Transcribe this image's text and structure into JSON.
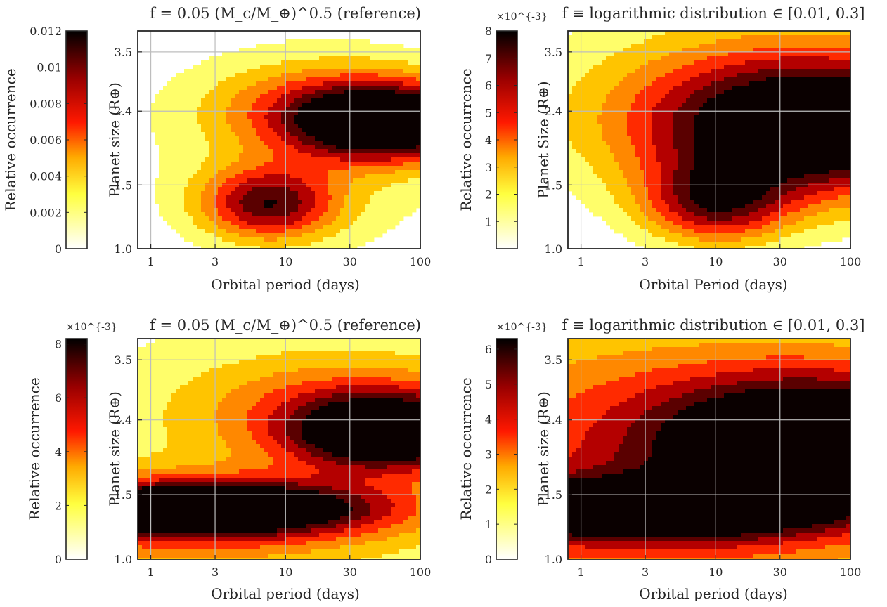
{
  "chart_data": [
    {
      "type": "heatmap",
      "panel": "top-left",
      "title": "f = 0.05 (M_c/M_⊕)^0.5 (reference)",
      "xlabel": "Orbital period (days)",
      "ylabel": "Planet size (R⊕)",
      "x_scale": "log",
      "y_scale": "log",
      "xlim": [
        0.8,
        100
      ],
      "ylim": [
        1.0,
        4.0
      ],
      "xticks": [
        1,
        3,
        10,
        30,
        100
      ],
      "xtick_labels": [
        "1",
        "3",
        "10",
        "30",
        "100"
      ],
      "yticks": [
        1.0,
        1.5,
        2.4,
        3.5
      ],
      "ytick_labels": [
        "1.0",
        "1.5",
        "2.4",
        "3.5"
      ],
      "grid": true,
      "colorbar": {
        "label": "Relative occurrence",
        "range": [
          0,
          0.012
        ],
        "ticks": [
          0,
          0.002,
          0.004,
          0.006,
          0.008,
          0.01,
          0.012
        ],
        "tick_labels": [
          "0",
          "0.002",
          "0.004",
          "0.006",
          "0.008",
          "0.01",
          "0.012"
        ],
        "exponent_label": ""
      },
      "contour_levels": [
        0.0015,
        0.003,
        0.0045,
        0.006,
        0.0075,
        0.009,
        0.0105
      ],
      "features": [
        {
          "x": 60,
          "y": 2.2,
          "peak": 0.0115,
          "sx": 0.5,
          "sy": 0.07
        },
        {
          "x": 28,
          "y": 2.5,
          "peak": 0.005,
          "sx": 0.65,
          "sy": 0.08
        },
        {
          "x": 7.5,
          "y": 1.33,
          "peak": 0.0085,
          "sx": 0.35,
          "sy": 0.07
        },
        {
          "x": 15,
          "y": 1.9,
          "peak": 0.0028,
          "sx": 0.9,
          "sy": 0.22
        }
      ]
    },
    {
      "type": "heatmap",
      "panel": "top-right",
      "title": "f ≡ logarithmic distribution ∈ [0.01, 0.3]",
      "xlabel": "Orbital Period (days)",
      "ylabel": "Planet Size (R⊕)",
      "x_scale": "log",
      "y_scale": "log",
      "xlim": [
        0.8,
        100
      ],
      "ylim": [
        1.0,
        4.0
      ],
      "xticks": [
        1,
        3,
        10,
        30,
        100
      ],
      "xtick_labels": [
        "1",
        "3",
        "10",
        "30",
        "100"
      ],
      "yticks": [
        1.0,
        1.5,
        2.4,
        3.5
      ],
      "ytick_labels": [
        "1.0",
        "1.5",
        "2.4",
        "3.5"
      ],
      "grid": true,
      "colorbar": {
        "label": "Relative occurrence",
        "range": [
          0,
          0.008
        ],
        "ticks": [
          0,
          0.001,
          0.002,
          0.003,
          0.004,
          0.005,
          0.006,
          0.007,
          0.008
        ],
        "tick_labels": [
          "",
          "1",
          "2",
          "3",
          "4",
          "5",
          "6",
          "7",
          "8"
        ],
        "exponent_label": "×10^{-3}"
      },
      "contour_levels": [
        0.001,
        0.002,
        0.003,
        0.004,
        0.005,
        0.006,
        0.007
      ],
      "features": [
        {
          "x": 60,
          "y": 2.15,
          "peak": 0.0078,
          "sx": 0.9,
          "sy": 0.13
        },
        {
          "x": 10,
          "y": 1.33,
          "peak": 0.0052,
          "sx": 0.38,
          "sy": 0.08
        },
        {
          "x": 30,
          "y": 2.6,
          "peak": 0.003,
          "sx": 1.2,
          "sy": 0.2
        }
      ]
    },
    {
      "type": "heatmap",
      "panel": "bottom-left",
      "title": "f = 0.05 (M_c/M_⊕)^0.5 (reference)",
      "xlabel": "Orbital period (days)",
      "ylabel": "Planet size (R⊕)",
      "x_scale": "log",
      "y_scale": "log",
      "xlim": [
        0.8,
        100
      ],
      "ylim": [
        1.0,
        4.0
      ],
      "xticks": [
        1,
        3,
        10,
        30,
        100
      ],
      "xtick_labels": [
        "1",
        "3",
        "10",
        "30",
        "100"
      ],
      "yticks": [
        1.0,
        1.5,
        2.4,
        3.5
      ],
      "ytick_labels": [
        "1.0",
        "1.5",
        "2.4",
        "3.5"
      ],
      "grid": true,
      "colorbar": {
        "label": "Relative occurrence",
        "range": [
          0,
          0.0082
        ],
        "ticks": [
          0,
          0.002,
          0.004,
          0.006,
          0.008
        ],
        "tick_labels": [
          "0",
          "2",
          "4",
          "6",
          "8"
        ],
        "exponent_label": "×10^{-3}"
      },
      "contour_levels": [
        0.001,
        0.002,
        0.003,
        0.004,
        0.005,
        0.006,
        0.007
      ],
      "features": [
        {
          "x": 2.5,
          "y": 1.38,
          "peak": 0.0082,
          "sx": 0.9,
          "sy": 0.05
        },
        {
          "x": 60,
          "y": 2.2,
          "peak": 0.0078,
          "sx": 0.5,
          "sy": 0.07
        },
        {
          "x": 30,
          "y": 2.6,
          "peak": 0.003,
          "sx": 0.8,
          "sy": 0.1
        },
        {
          "x": 10,
          "y": 1.9,
          "peak": 0.0016,
          "sx": 1.6,
          "sy": 0.35
        },
        {
          "x": 1.5,
          "y": 1.25,
          "peak": 0.003,
          "sx": 1.2,
          "sy": 0.09
        }
      ]
    },
    {
      "type": "heatmap",
      "panel": "bottom-right",
      "title": "f ≡ logarithmic distribution ∈ [0.01, 0.3]",
      "xlabel": "Orbital period (days)",
      "ylabel": "Planet size (R⊕)",
      "x_scale": "log",
      "y_scale": "log",
      "xlim": [
        0.8,
        100
      ],
      "ylim": [
        1.0,
        4.0
      ],
      "xticks": [
        1,
        3,
        10,
        30,
        100
      ],
      "xtick_labels": [
        "1",
        "3",
        "10",
        "30",
        "100"
      ],
      "yticks": [
        1.0,
        1.5,
        2.4,
        3.5
      ],
      "ytick_labels": [
        "1.0",
        "1.5",
        "2.4",
        "3.5"
      ],
      "grid": true,
      "colorbar": {
        "label": "Relative occurrence",
        "range": [
          0,
          0.0063
        ],
        "ticks": [
          0,
          0.001,
          0.002,
          0.003,
          0.004,
          0.005,
          0.006
        ],
        "tick_labels": [
          "0",
          "1",
          "2",
          "3",
          "4",
          "5",
          "6"
        ],
        "exponent_label": "×10^{-3}"
      },
      "contour_levels": [
        0.0008,
        0.0016,
        0.0024,
        0.0032,
        0.004,
        0.0048,
        0.0056
      ],
      "features": [
        {
          "x": 60,
          "y": 2.15,
          "peak": 0.006,
          "sx": 0.9,
          "sy": 0.12
        },
        {
          "x": 2.5,
          "y": 1.38,
          "peak": 0.0057,
          "sx": 1.0,
          "sy": 0.05
        },
        {
          "x": 5,
          "y": 2.3,
          "peak": 0.003,
          "sx": 2.2,
          "sy": 0.25
        },
        {
          "x": 3,
          "y": 1.2,
          "peak": 0.0025,
          "sx": 1.6,
          "sy": 0.12
        }
      ]
    }
  ]
}
